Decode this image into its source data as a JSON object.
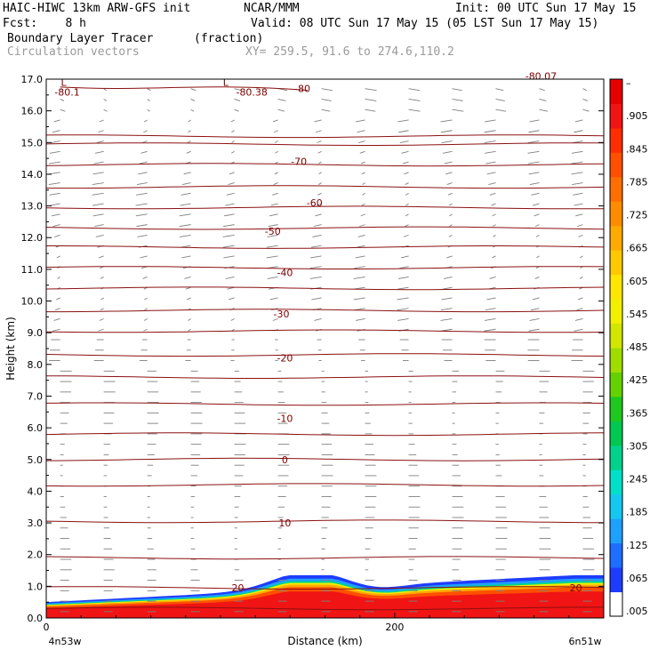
{
  "header": {
    "model": "HAIC-HIWC 13km ARW-GFS init",
    "org": "NCAR/MMM",
    "init": "Init: 00 UTC Sun 17 May 15",
    "fcst": "Fcst:    8 h",
    "valid": "Valid: 08 UTC Sun 17 May 15 (05 LST Sun 17 May 15)",
    "field": "Boundary Layer Tracer",
    "units": "(fraction)",
    "vectors": "Circulation vectors",
    "xy": "XY= 259.5, 91.6 to 274.6,110.2"
  },
  "colors": {
    "contour": "#8b1010",
    "vector": "#808080",
    "colorbar": [
      "#ffffff",
      "#1e3cff",
      "#1e6eff",
      "#1ea0ff",
      "#14c8f0",
      "#00e0c8",
      "#00d28c",
      "#00c850",
      "#1ec81e",
      "#64d200",
      "#a0dc00",
      "#d2e600",
      "#f0f000",
      "#ffe600",
      "#ffc800",
      "#ffaa00",
      "#ff8c00",
      "#ff6e00",
      "#ff5000",
      "#ff2d00",
      "#f01414",
      "#e60000"
    ]
  },
  "chart_data": {
    "type": "cross-section",
    "title": "Boundary Layer Tracer",
    "xlabel": "Distance (km)",
    "ylabel": "Height (km)",
    "x_ticks": [
      "0",
      "200"
    ],
    "x_end_labels": [
      "4n53w",
      "6n51w"
    ],
    "xlim": [
      0,
      320
    ],
    "ylim": [
      0,
      17
    ],
    "y_ticks": [
      "0.0",
      "1.0",
      "2.0",
      "3.0",
      "4.0",
      "5.0",
      "6.0",
      "7.0",
      "8.0",
      "9.0",
      "10.0",
      "11.0",
      "12.0",
      "13.0",
      "14.0",
      "15.0",
      "16.0",
      "17.0"
    ],
    "colorbar_ticks": [
      ".005",
      ".065",
      ".125",
      ".185",
      ".245",
      ".305",
      ".365",
      ".425",
      ".485",
      ".545",
      ".605",
      ".665",
      ".725",
      ".785",
      ".845",
      ".905",
      "–"
    ],
    "contour_labels": [
      {
        "text": "-80.1",
        "x": 12,
        "y": 16.6
      },
      {
        "text": "-80.38",
        "x": 118,
        "y": 16.6
      },
      {
        "text": "-80",
        "x": 147,
        "y": 16.7
      },
      {
        "text": "-70",
        "x": 145,
        "y": 14.4
      },
      {
        "text": "-60",
        "x": 154,
        "y": 13.1
      },
      {
        "text": "-50",
        "x": 130,
        "y": 12.2
      },
      {
        "text": "-40",
        "x": 137,
        "y": 10.9
      },
      {
        "text": "-30",
        "x": 135,
        "y": 9.6
      },
      {
        "text": "-20",
        "x": 137,
        "y": 8.2
      },
      {
        "text": "-10",
        "x": 137,
        "y": 6.3
      },
      {
        "text": "0",
        "x": 137,
        "y": 5.0
      },
      {
        "text": "10",
        "x": 137,
        "y": 3.0
      },
      {
        "text": "20",
        "x": 110,
        "y": 0.95
      },
      {
        "text": "20",
        "x": 304,
        "y": 0.95
      }
    ],
    "low_markers": [
      {
        "text": "L",
        "x": 10,
        "y": 16.9
      },
      {
        "text": "L",
        "x": 103,
        "y": 16.9
      }
    ],
    "extra_label": {
      "text": "-80.07",
      "x": 284,
      "y": 17.1
    }
  }
}
